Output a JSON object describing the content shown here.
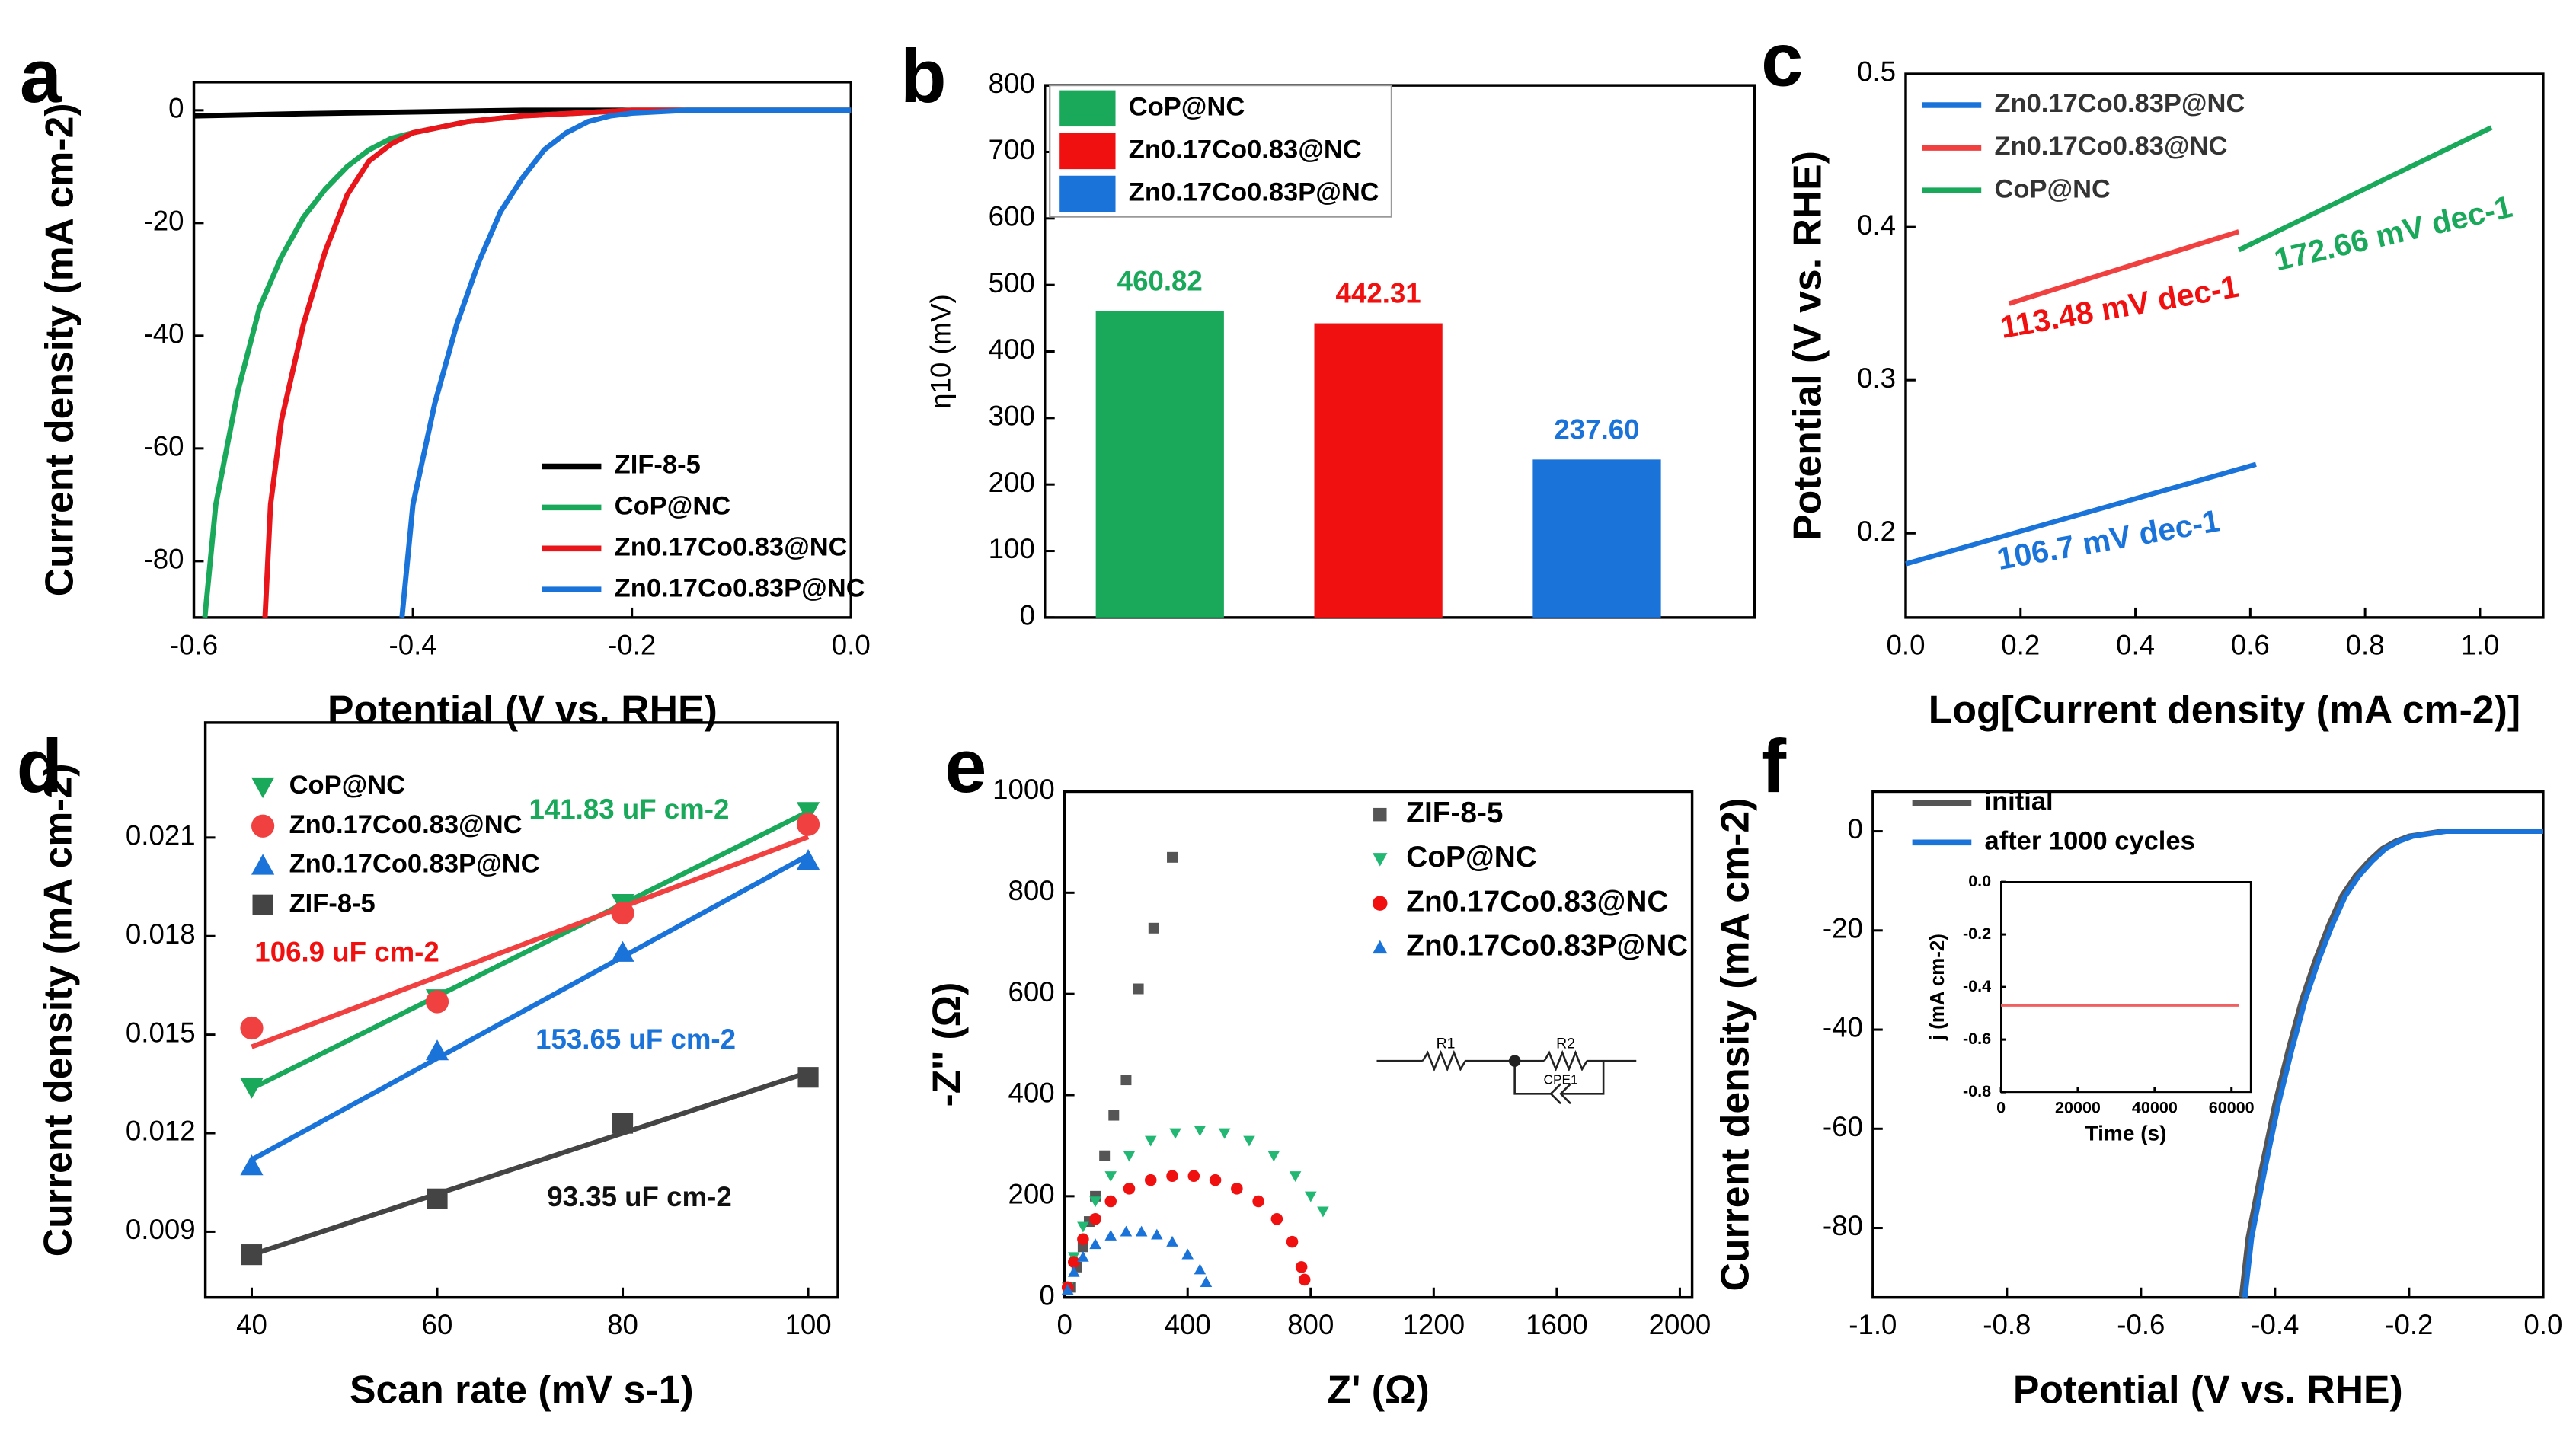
{
  "chart_data": [
    {
      "type": "line",
      "panel": "a",
      "xlabel": "Potential (V vs. RHE)",
      "ylabel": "Current density (mA cm-2)",
      "xlim": [
        -0.6,
        0
      ],
      "ylim": [
        -90,
        5
      ],
      "xticks": [
        -0.6,
        -0.4,
        -0.2,
        {
          "value": 0,
          "label": "0.0"
        }
      ],
      "yticks": [
        0,
        -20,
        -40,
        -60,
        -80
      ],
      "series": [
        {
          "name": "ZIF-8-5",
          "color": "#000000",
          "x": [
            -0.6,
            -0.5,
            -0.4,
            -0.3,
            0
          ],
          "values": [
            -1,
            -0.6,
            -0.3,
            0,
            0
          ]
        },
        {
          "name": "CoP@NC",
          "color": "#1aa85a",
          "x": [
            -0.59,
            -0.58,
            -0.56,
            -0.54,
            -0.52,
            -0.5,
            -0.48,
            -0.46,
            -0.44,
            -0.42,
            -0.4,
            -0.35,
            -0.3,
            -0.25,
            -0.2,
            0
          ],
          "values": [
            -90,
            -70,
            -50,
            -35,
            -26,
            -19,
            -14,
            -10,
            -7,
            -5,
            -4,
            -2,
            -1,
            -0.5,
            0,
            0
          ]
        },
        {
          "name": "Zn0.17Co0.83@NC",
          "color": "#e8161b",
          "x": [
            -0.535,
            -0.53,
            -0.52,
            -0.5,
            -0.48,
            -0.46,
            -0.44,
            -0.42,
            -0.4,
            -0.35,
            -0.3,
            -0.2,
            0
          ],
          "values": [
            -90,
            -70,
            -55,
            -38,
            -25,
            -15,
            -9,
            -6,
            -4,
            -2,
            -1,
            0,
            0
          ]
        },
        {
          "name": "Zn0.17Co0.83P@NC",
          "color": "#1a73d9",
          "x": [
            -0.41,
            -0.4,
            -0.38,
            -0.36,
            -0.34,
            -0.32,
            -0.3,
            -0.28,
            -0.26,
            -0.24,
            -0.22,
            -0.2,
            -0.15,
            0
          ],
          "values": [
            -90,
            -70,
            -52,
            -38,
            -27,
            -18,
            -12,
            -7,
            -4,
            -2,
            -1,
            -0.5,
            0,
            0
          ]
        }
      ]
    },
    {
      "type": "bar",
      "panel": "b",
      "ylabel": "η10 (mV)",
      "ylim": [
        0,
        800
      ],
      "yticks": [
        0,
        100,
        200,
        300,
        400,
        500,
        600,
        700,
        800
      ],
      "categories": [
        "CoP@NC",
        "Zn0.17Co0.83@NC",
        "Zn0.17Co0.83P@NC"
      ],
      "colors": [
        "#1aa85a",
        "#f01010",
        "#1a73d9"
      ],
      "values": [
        460.82,
        442.31,
        237.6
      ],
      "value_labels": [
        "460.82",
        "442.31",
        "237.60"
      ]
    },
    {
      "type": "line",
      "panel": "c",
      "xlabel": "Log[Current density (mA cm-2)]",
      "ylabel": "Potential (V vs. RHE)",
      "xlim": [
        0,
        1.11
      ],
      "ylim": [
        0.145,
        0.5
      ],
      "xticks": [
        {
          "value": 0,
          "label": "0.0"
        },
        0.2,
        0.4,
        0.6,
        0.8,
        {
          "value": 1,
          "label": "1.0"
        }
      ],
      "yticks": [
        0.2,
        0.3,
        0.4,
        0.5
      ],
      "series": [
        {
          "name": "Zn0.17Co0.83P@NC",
          "color": "#1a73d9",
          "x": [
            0,
            0.61
          ],
          "values": [
            0.18,
            0.245
          ]
        },
        {
          "name": "Zn0.17Co0.83@NC",
          "color": "#f04040",
          "x": [
            0.18,
            0.58
          ],
          "values": [
            0.35,
            0.397
          ]
        },
        {
          "name": "CoP@NC",
          "color": "#1aa85a",
          "x": [
            0.58,
            1.02
          ],
          "values": [
            0.385,
            0.465
          ]
        }
      ],
      "annotations": [
        {
          "text": "113.48 mV dec-1",
          "color": "#f01010"
        },
        {
          "text": "172.66 mV dec-1",
          "color": "#1aa85a"
        },
        {
          "text": "106.7 mV dec-1",
          "color": "#1a73d9"
        }
      ]
    },
    {
      "type": "scatter",
      "panel": "d",
      "fit": true,
      "xlabel": "Scan rate (mV s-1)",
      "ylabel": "Current density (mA cm-2)",
      "xlim": [
        35,
        103.2
      ],
      "ylim": [
        0.007,
        0.0245
      ],
      "xticks": [
        40,
        60,
        80,
        100
      ],
      "yticks": [
        0.009,
        0.012,
        0.015,
        0.018,
        0.021
      ],
      "series": [
        {
          "name": "CoP@NC",
          "color": "#1aa85a",
          "marker": "triangle-down",
          "x": [
            40,
            60,
            80,
            100
          ],
          "values": [
            0.0134,
            0.0161,
            0.019,
            0.0218
          ]
        },
        {
          "name": "Zn0.17Co0.83@NC",
          "color": "#f04040",
          "marker": "circle",
          "x": [
            40,
            60,
            80,
            100
          ],
          "values": [
            0.0152,
            0.016,
            0.0187,
            0.0214
          ]
        },
        {
          "name": "Zn0.17Co0.83P@NC",
          "color": "#1a73d9",
          "marker": "triangle-up",
          "x": [
            40,
            60,
            80,
            100
          ],
          "values": [
            0.011,
            0.0145,
            0.0175,
            0.0203
          ]
        },
        {
          "name": "ZIF-8-5",
          "color": "#444444",
          "marker": "square",
          "x": [
            40,
            60,
            80,
            100
          ],
          "values": [
            0.0083,
            0.01,
            0.0123,
            0.0137
          ]
        }
      ],
      "annotations": [
        {
          "text": "141.83 uF cm-2",
          "color": "#1aa85a"
        },
        {
          "text": "106.9 uF cm-2",
          "color": "#f01010"
        },
        {
          "text": "153.65 uF cm-2",
          "color": "#1a73d9"
        },
        {
          "text": "93.35 uF cm-2",
          "color": "#111111"
        }
      ]
    },
    {
      "type": "scatter",
      "panel": "e",
      "xlabel": "Z' (Ω)",
      "ylabel": "-Z'' (Ω)",
      "xlim": [
        0,
        2040
      ],
      "ylim": [
        0,
        1000
      ],
      "xticks": [
        0,
        400,
        800,
        1200,
        1600,
        2000
      ],
      "yticks": [
        0,
        200,
        400,
        600,
        800,
        1000
      ],
      "series": [
        {
          "name": "ZIF-8-5",
          "color": "#555555",
          "marker": "square",
          "x": [
            20,
            40,
            60,
            80,
            100,
            130,
            160,
            200,
            240,
            290,
            350
          ],
          "values": [
            20,
            60,
            100,
            150,
            200,
            280,
            360,
            430,
            610,
            730,
            870
          ]
        },
        {
          "name": "CoP@NC",
          "color": "#22b873",
          "marker": "triangle-down",
          "x": [
            10,
            30,
            60,
            100,
            150,
            210,
            280,
            360,
            440,
            520,
            600,
            680,
            750,
            800,
            840
          ],
          "values": [
            20,
            80,
            140,
            190,
            240,
            280,
            310,
            325,
            330,
            325,
            310,
            280,
            240,
            200,
            170
          ]
        },
        {
          "name": "Zn0.17Co0.83@NC",
          "color": "#f01010",
          "marker": "circle",
          "x": [
            10,
            30,
            60,
            100,
            150,
            210,
            280,
            350,
            420,
            490,
            560,
            630,
            690,
            740,
            770,
            780
          ],
          "values": [
            20,
            70,
            115,
            155,
            190,
            215,
            232,
            240,
            240,
            232,
            215,
            190,
            155,
            110,
            60,
            35
          ]
        },
        {
          "name": "Zn0.17Co0.83P@NC",
          "color": "#1a73d9",
          "marker": "triangle-up",
          "x": [
            10,
            30,
            60,
            100,
            150,
            200,
            250,
            300,
            350,
            400,
            440,
            460
          ],
          "values": [
            15,
            50,
            80,
            105,
            122,
            130,
            130,
            124,
            110,
            85,
            55,
            30
          ]
        }
      ],
      "circuit_labels": [
        "R1",
        "R2",
        "CPE1"
      ]
    },
    {
      "type": "line",
      "panel": "f",
      "xlabel": "Potential (V vs. RHE)",
      "ylabel": "Current density (mA cm-2)",
      "xlim": [
        -1,
        0
      ],
      "ylim": [
        -94,
        8
      ],
      "xticks": [
        {
          "value": -1,
          "label": "-1.0"
        },
        -0.8,
        -0.6,
        -0.4,
        -0.2,
        {
          "value": 0,
          "label": "0.0"
        }
      ],
      "yticks": [
        0,
        -20,
        -40,
        -60,
        -80
      ],
      "series": [
        {
          "name": "initial",
          "color": "#555555",
          "x": [
            -0.45,
            -0.44,
            -0.42,
            -0.4,
            -0.38,
            -0.36,
            -0.34,
            -0.32,
            -0.3,
            -0.28,
            -0.26,
            -0.24,
            -0.22,
            -0.2,
            -0.15,
            0
          ],
          "values": [
            -94,
            -82,
            -68,
            -55,
            -44,
            -34,
            -26,
            -19,
            -13,
            -9,
            -6,
            -3.5,
            -2,
            -1,
            0,
            0
          ]
        },
        {
          "name": "after 1000 cycles",
          "color": "#1a73d9",
          "x": [
            -0.445,
            -0.435,
            -0.415,
            -0.395,
            -0.375,
            -0.355,
            -0.335,
            -0.315,
            -0.295,
            -0.275,
            -0.255,
            -0.235,
            -0.215,
            -0.195,
            -0.145,
            0
          ],
          "values": [
            -94,
            -82,
            -68,
            -55,
            -44,
            -34,
            -26,
            -19,
            -13,
            -9,
            -6,
            -3.5,
            -2,
            -1,
            0,
            0
          ]
        }
      ],
      "inset": {
        "type": "line",
        "xlabel": "Time (s)",
        "ylabel": "j (mA cm-2)",
        "xlim": [
          0,
          65000
        ],
        "ylim": [
          -0.8,
          0
        ],
        "xticks": [
          0,
          20000,
          40000,
          60000
        ],
        "yticks": [
          {
            "value": 0,
            "label": "0.0"
          },
          -0.2,
          -0.4,
          -0.6,
          -0.8
        ],
        "series": [
          {
            "color": "#f06060",
            "x": [
              0,
              62000
            ],
            "values": [
              -0.47,
              -0.47
            ]
          }
        ]
      }
    }
  ]
}
